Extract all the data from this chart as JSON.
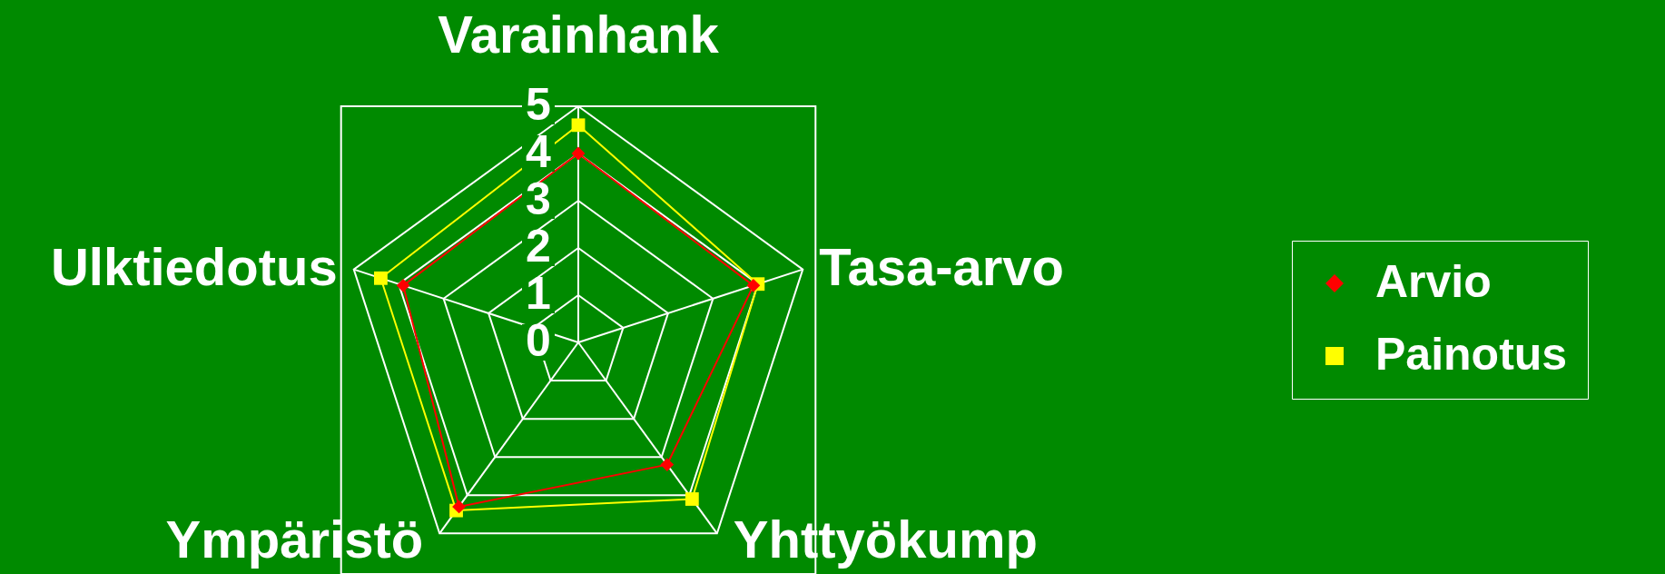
{
  "chart_data": {
    "type": "radar",
    "categories": [
      "Varainhank",
      "Tasa-arvo",
      "Yhttyökump",
      "Ympäristö",
      "Ulktiedotus"
    ],
    "series": [
      {
        "name": "Arvio",
        "color": "#ff0000",
        "marker": "diamond",
        "values": [
          4.0,
          3.9,
          3.2,
          4.3,
          3.9
        ]
      },
      {
        "name": "Painotus",
        "color": "#ffff00",
        "marker": "square",
        "values": [
          4.6,
          4.0,
          4.1,
          4.4,
          4.4
        ]
      }
    ],
    "ylim": [
      0,
      5
    ],
    "yticks": [
      0,
      1,
      2,
      3,
      4,
      5
    ],
    "grid": true,
    "legend": "right"
  }
}
